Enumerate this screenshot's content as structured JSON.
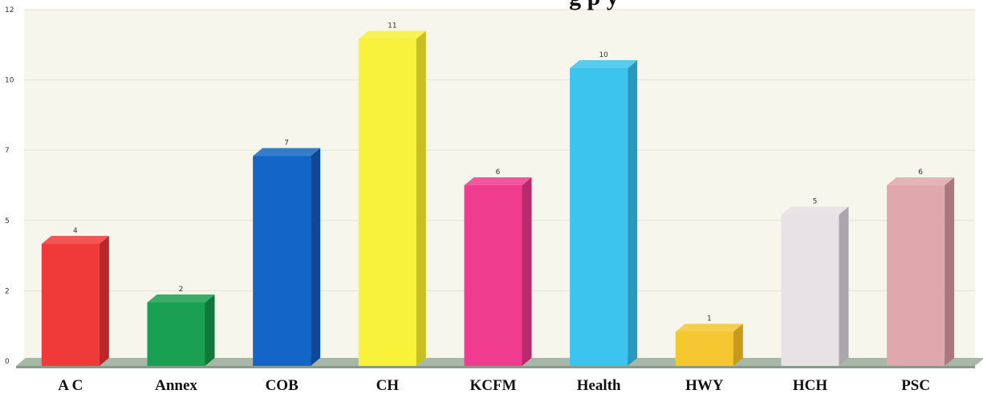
{
  "chart_data": {
    "type": "bar",
    "title": "",
    "title_fragment": "g p      y",
    "xlabel": "",
    "ylabel": "",
    "categories": [
      "A C",
      "Annex",
      "COB",
      "CH",
      "KCFM",
      "Health",
      "HWY",
      "HCH",
      "PSC"
    ],
    "values": [
      4,
      2,
      7,
      11,
      6,
      10,
      1,
      5,
      6
    ],
    "data_labels": [
      "4",
      "2",
      "7",
      "11",
      "6",
      "10",
      "1",
      "5",
      "6"
    ],
    "y_tick_labels": [
      "0",
      "2",
      "5",
      "7",
      "10",
      "12"
    ],
    "ylim": [
      0,
      12
    ],
    "grid": true,
    "legend": "none",
    "colors": [
      "#f03a3a",
      "#1aa052",
      "#1366c8",
      "#f8f23a",
      "#f03c8e",
      "#3cc4ee",
      "#f6c630",
      "#e6e2e6",
      "#dfa8ad"
    ],
    "side_colors": [
      "#b82828",
      "#107838",
      "#0c4a98",
      "#c8c020",
      "#b82a6c",
      "#2898bc",
      "#c89a1c",
      "#aaa6ae",
      "#a8787e"
    ],
    "background_color": "#f6f6ec",
    "floor_color": "#a8b8a8"
  }
}
